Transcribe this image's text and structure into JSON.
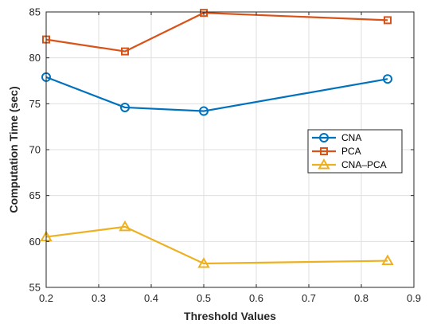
{
  "chart_data": {
    "type": "line",
    "title": "",
    "xlabel": "Threshold Values",
    "ylabel": "Computation Time (sec)",
    "xlim": [
      0.2,
      0.9
    ],
    "ylim": [
      55,
      85
    ],
    "xticks": [
      0.2,
      0.3,
      0.4,
      0.5,
      0.6,
      0.7,
      0.8,
      0.9
    ],
    "xtick_labels": [
      "0.2",
      "0.3",
      "0.4",
      "0.5",
      "0.6",
      "0.7",
      "0.8",
      "0.9"
    ],
    "yticks": [
      55,
      60,
      65,
      70,
      75,
      80,
      85
    ],
    "ytick_labels": [
      "55",
      "60",
      "65",
      "70",
      "75",
      "80",
      "85"
    ],
    "grid": true,
    "legend_position": "right",
    "x": [
      0.2,
      0.35,
      0.5,
      0.85
    ],
    "series": [
      {
        "name": "CNA",
        "values": [
          77.9,
          74.6,
          74.2,
          77.7
        ],
        "color": "#0072BD",
        "marker": "circle"
      },
      {
        "name": "PCA",
        "values": [
          82.0,
          80.7,
          84.9,
          84.1
        ],
        "color": "#D95319",
        "marker": "square"
      },
      {
        "name": "CNA–PCA",
        "values": [
          60.5,
          61.6,
          57.6,
          57.9
        ],
        "color": "#EDB120",
        "marker": "triangle"
      }
    ]
  }
}
